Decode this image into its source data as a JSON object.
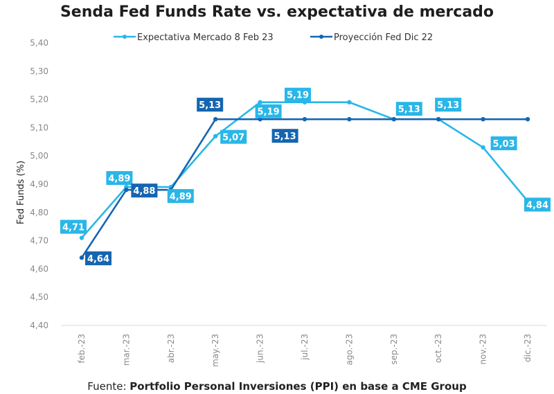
{
  "chart_data": {
    "type": "line",
    "title": "Senda Fed Funds Rate vs. expectativa de mercado",
    "ylabel": "Fed Funds (%)",
    "xlabel": "",
    "ylim": [
      4.4,
      5.4
    ],
    "ytick_step": 0.1,
    "ytick_labels": [
      "4,40",
      "4,50",
      "4,60",
      "4,70",
      "4,80",
      "4,90",
      "5,00",
      "5,10",
      "5,20",
      "5,30",
      "5,40"
    ],
    "categories": [
      "feb.-23",
      "mar.-23",
      "abr.-23",
      "may.-23",
      "jun.-23",
      "jul.-23",
      "ago.-23",
      "sep.-23",
      "oct.-23",
      "nov.-23",
      "dic.-23"
    ],
    "legend_position": "top-center",
    "series": [
      {
        "name": "Expectativa Mercado 8 Feb 23",
        "color": "#29b6e8",
        "values": [
          4.71,
          4.89,
          4.89,
          5.07,
          5.19,
          5.19,
          5.19,
          5.13,
          5.13,
          5.03,
          4.84
        ]
      },
      {
        "name": "Proyección Fed Dic 22",
        "color": "#1565b0",
        "values": [
          4.64,
          4.88,
          4.88,
          5.13,
          5.13,
          5.13,
          5.13,
          5.13,
          5.13,
          5.13,
          5.13
        ]
      }
    ],
    "data_labels": [
      {
        "series": 0,
        "index": 0,
        "text": "4,71"
      },
      {
        "series": 1,
        "index": 0,
        "text": "4,64"
      },
      {
        "series": 0,
        "index": 1,
        "text": "4,89"
      },
      {
        "series": 1,
        "index": 1,
        "text": "4,88"
      },
      {
        "series": 0,
        "index": 2,
        "text": "4,89"
      },
      {
        "series": 1,
        "index": 3,
        "text": "5,13"
      },
      {
        "series": 0,
        "index": 3,
        "text": "5,07"
      },
      {
        "series": 0,
        "index": 4,
        "text": "5,19"
      },
      {
        "series": 1,
        "index": 4,
        "text": "5,13"
      },
      {
        "series": 0,
        "index": 5,
        "text": "5,19"
      },
      {
        "series": 0,
        "index": 7,
        "text": "5,13"
      },
      {
        "series": 0,
        "index": 8,
        "text": "5,13"
      },
      {
        "series": 0,
        "index": 9,
        "text": "5,03"
      },
      {
        "series": 0,
        "index": 10,
        "text": "4,84"
      }
    ]
  },
  "source": {
    "prefix": "Fuente: ",
    "text": "Portfolio Personal Inversiones (PPI) en base a CME Group"
  }
}
